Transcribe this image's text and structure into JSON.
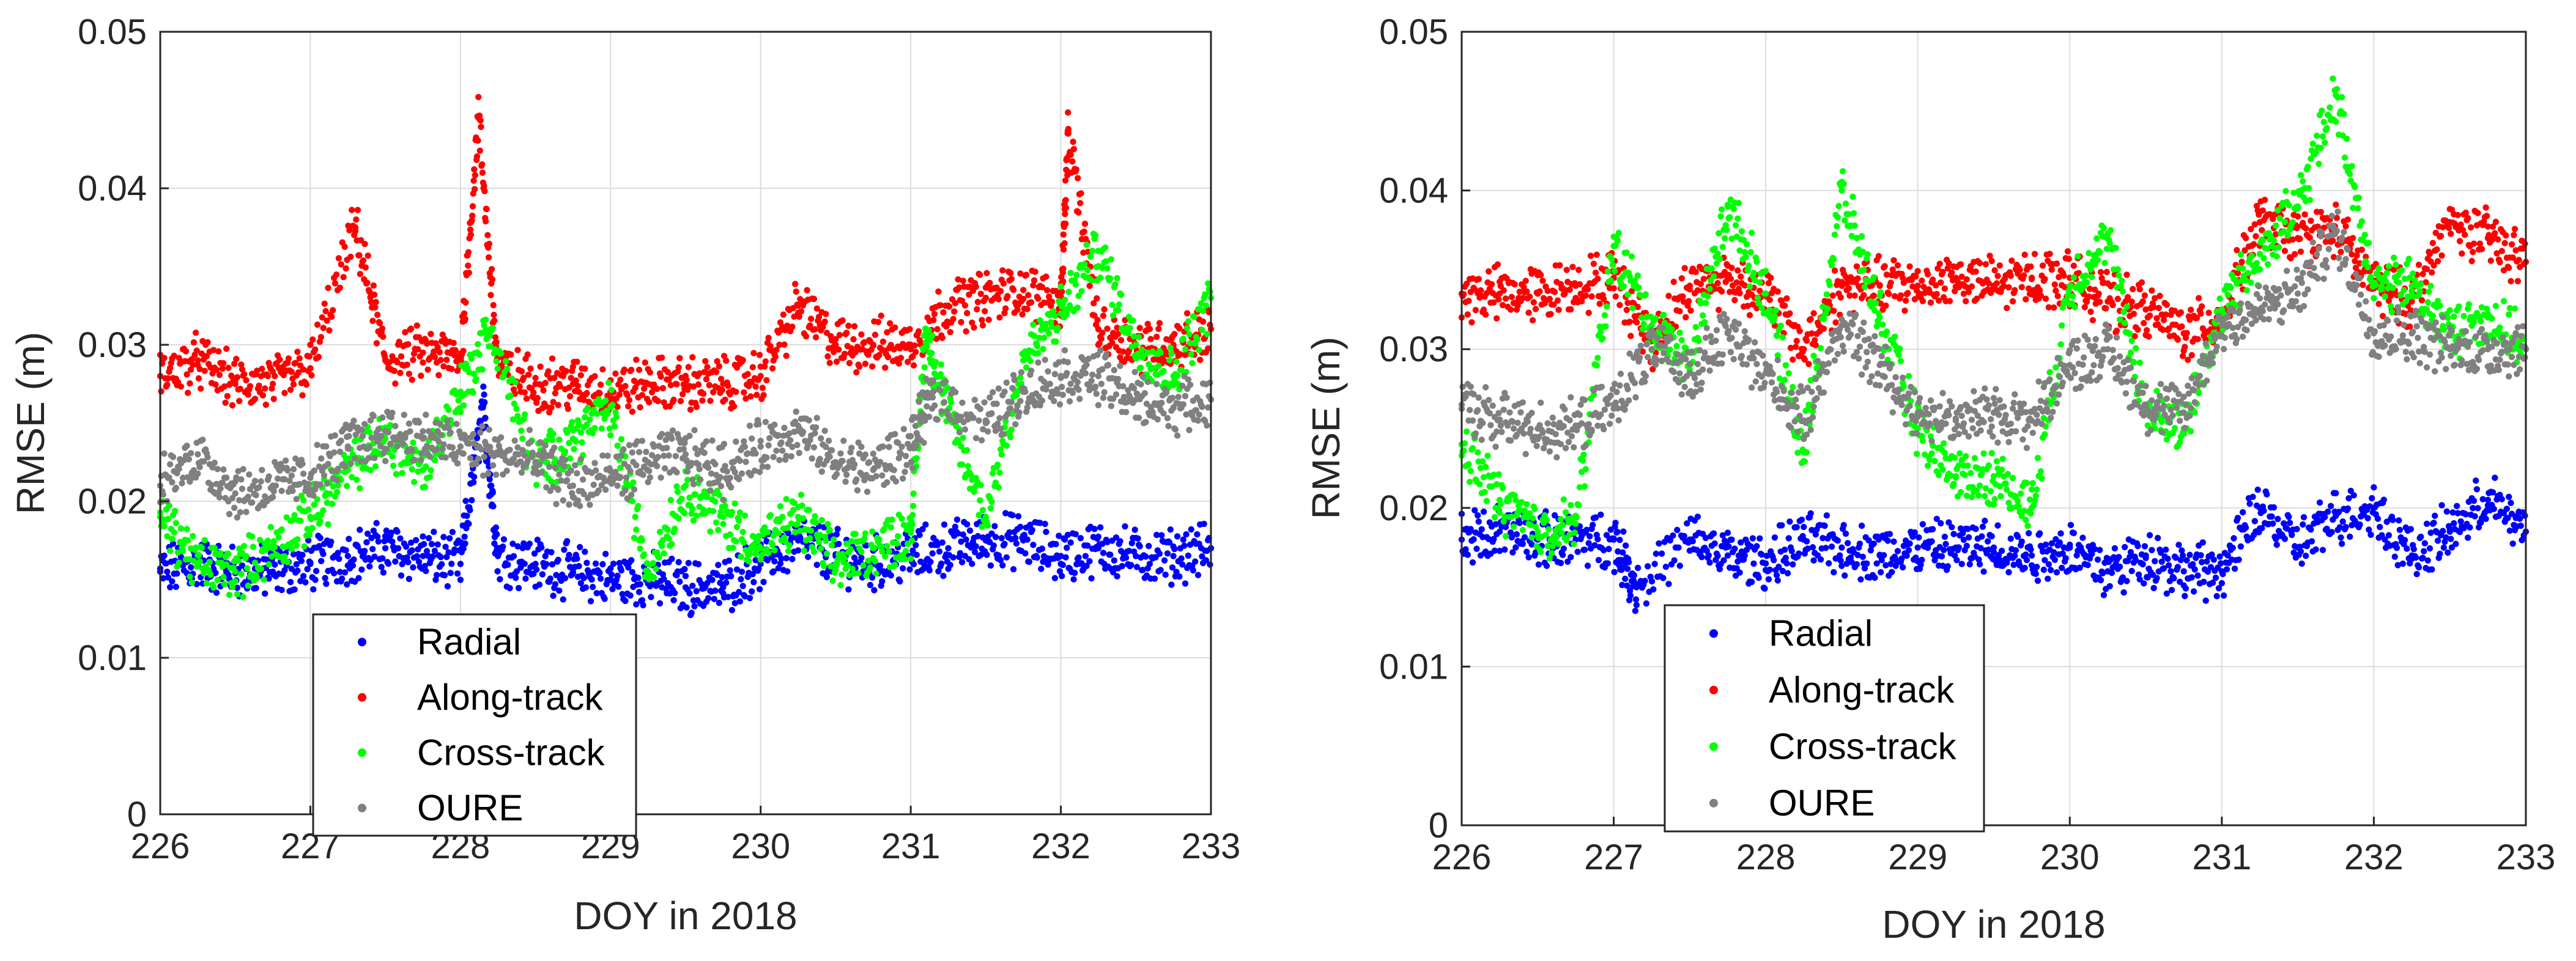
{
  "chart_data": [
    {
      "type": "scatter",
      "title": "",
      "xlabel": "DOY in 2018",
      "ylabel": "RMSE (m)",
      "xlim": [
        226,
        233
      ],
      "ylim": [
        0,
        0.05
      ],
      "xticks": [
        "226",
        "227",
        "228",
        "229",
        "230",
        "231",
        "232",
        "233"
      ],
      "yticks": [
        "0",
        "0.01",
        "0.02",
        "0.03",
        "0.04",
        "0.05"
      ],
      "grid": true,
      "legend_position": "lower-left",
      "series": [
        {
          "name": "Radial",
          "color": "#0000ff",
          "values": [
            [
              226.0,
              0.0155
            ],
            [
              226.25,
              0.016
            ],
            [
              226.5,
              0.0155
            ],
            [
              226.75,
              0.0155
            ],
            [
              227.0,
              0.016
            ],
            [
              227.25,
              0.0165
            ],
            [
              227.5,
              0.017
            ],
            [
              227.75,
              0.0165
            ],
            [
              228.0,
              0.016
            ],
            [
              228.15,
              0.026
            ],
            [
              228.25,
              0.0165
            ],
            [
              228.5,
              0.016
            ],
            [
              228.75,
              0.0155
            ],
            [
              229.0,
              0.015
            ],
            [
              229.25,
              0.015
            ],
            [
              229.5,
              0.0145
            ],
            [
              229.75,
              0.0145
            ],
            [
              230.0,
              0.016
            ],
            [
              230.25,
              0.0175
            ],
            [
              230.5,
              0.0165
            ],
            [
              230.75,
              0.016
            ],
            [
              231.0,
              0.0165
            ],
            [
              231.25,
              0.017
            ],
            [
              231.5,
              0.0175
            ],
            [
              231.75,
              0.0175
            ],
            [
              232.0,
              0.0165
            ],
            [
              232.25,
              0.017
            ],
            [
              232.5,
              0.0165
            ],
            [
              232.75,
              0.0165
            ],
            [
              233.0,
              0.017
            ]
          ]
        },
        {
          "name": "Along-track",
          "color": "#ff0000",
          "values": [
            [
              226.0,
              0.028
            ],
            [
              226.25,
              0.029
            ],
            [
              226.5,
              0.0275
            ],
            [
              226.75,
              0.0275
            ],
            [
              227.0,
              0.0285
            ],
            [
              227.3,
              0.0375
            ],
            [
              227.5,
              0.029
            ],
            [
              227.75,
              0.0295
            ],
            [
              228.0,
              0.029
            ],
            [
              228.12,
              0.0445
            ],
            [
              228.25,
              0.0285
            ],
            [
              228.5,
              0.0275
            ],
            [
              228.75,
              0.0275
            ],
            [
              229.0,
              0.027
            ],
            [
              229.25,
              0.0275
            ],
            [
              229.5,
              0.0275
            ],
            [
              229.75,
              0.0275
            ],
            [
              230.0,
              0.028
            ],
            [
              230.25,
              0.0325
            ],
            [
              230.5,
              0.03
            ],
            [
              230.75,
              0.03
            ],
            [
              231.0,
              0.03
            ],
            [
              231.25,
              0.0325
            ],
            [
              231.5,
              0.033
            ],
            [
              231.75,
              0.0335
            ],
            [
              232.0,
              0.0325
            ],
            [
              232.05,
              0.0435
            ],
            [
              232.25,
              0.031
            ],
            [
              232.5,
              0.03
            ],
            [
              232.75,
              0.03
            ],
            [
              233.0,
              0.031
            ]
          ]
        },
        {
          "name": "Cross-track",
          "color": "#00ff00",
          "values": [
            [
              226.0,
              0.019
            ],
            [
              226.25,
              0.016
            ],
            [
              226.5,
              0.0155
            ],
            [
              226.75,
              0.017
            ],
            [
              227.0,
              0.019
            ],
            [
              227.25,
              0.022
            ],
            [
              227.5,
              0.024
            ],
            [
              227.75,
              0.022
            ],
            [
              228.0,
              0.027
            ],
            [
              228.2,
              0.031
            ],
            [
              228.5,
              0.022
            ],
            [
              228.75,
              0.024
            ],
            [
              229.0,
              0.026
            ],
            [
              229.25,
              0.0155
            ],
            [
              229.5,
              0.021
            ],
            [
              229.75,
              0.019
            ],
            [
              230.0,
              0.017
            ],
            [
              230.25,
              0.019
            ],
            [
              230.5,
              0.016
            ],
            [
              230.75,
              0.017
            ],
            [
              231.0,
              0.018
            ],
            [
              231.1,
              0.031
            ],
            [
              231.25,
              0.0255
            ],
            [
              231.5,
              0.019
            ],
            [
              231.75,
              0.029
            ],
            [
              232.0,
              0.032
            ],
            [
              232.25,
              0.036
            ],
            [
              232.5,
              0.03
            ],
            [
              232.75,
              0.028
            ],
            [
              233.0,
              0.033
            ]
          ]
        },
        {
          "name": "OURE",
          "color": "#808080",
          "values": [
            [
              226.0,
              0.021
            ],
            [
              226.25,
              0.023
            ],
            [
              226.5,
              0.0205
            ],
            [
              226.75,
              0.021
            ],
            [
              227.0,
              0.0215
            ],
            [
              227.25,
              0.0235
            ],
            [
              227.5,
              0.0245
            ],
            [
              227.75,
              0.024
            ],
            [
              228.0,
              0.0235
            ],
            [
              228.25,
              0.023
            ],
            [
              228.5,
              0.0225
            ],
            [
              228.75,
              0.021
            ],
            [
              229.0,
              0.0215
            ],
            [
              229.25,
              0.0225
            ],
            [
              229.5,
              0.023
            ],
            [
              229.75,
              0.022
            ],
            [
              230.0,
              0.0235
            ],
            [
              230.25,
              0.0245
            ],
            [
              230.5,
              0.0225
            ],
            [
              230.75,
              0.022
            ],
            [
              231.0,
              0.0235
            ],
            [
              231.15,
              0.027
            ],
            [
              231.5,
              0.025
            ],
            [
              231.75,
              0.027
            ],
            [
              232.0,
              0.028
            ],
            [
              232.25,
              0.028
            ],
            [
              232.5,
              0.0265
            ],
            [
              232.75,
              0.026
            ],
            [
              233.0,
              0.0265
            ]
          ]
        }
      ]
    },
    {
      "type": "scatter",
      "title": "",
      "xlabel": "DOY in 2018",
      "ylabel": "RMSE (m)",
      "xlim": [
        226,
        233
      ],
      "ylim": [
        0,
        0.05
      ],
      "xticks": [
        "226",
        "227",
        "228",
        "229",
        "230",
        "231",
        "232",
        "233"
      ],
      "yticks": [
        "0",
        "0.01",
        "0.02",
        "0.03",
        "0.04",
        "0.05"
      ],
      "grid": true,
      "legend_position": "lower-left",
      "series": [
        {
          "name": "Radial",
          "color": "#0000ff",
          "values": [
            [
              226.0,
              0.018
            ],
            [
              226.25,
              0.0185
            ],
            [
              226.5,
              0.018
            ],
            [
              226.75,
              0.018
            ],
            [
              227.0,
              0.018
            ],
            [
              227.15,
              0.015
            ],
            [
              227.5,
              0.018
            ],
            [
              227.75,
              0.017
            ],
            [
              228.0,
              0.0165
            ],
            [
              228.25,
              0.018
            ],
            [
              228.5,
              0.0175
            ],
            [
              228.75,
              0.017
            ],
            [
              229.0,
              0.0175
            ],
            [
              229.25,
              0.0175
            ],
            [
              229.5,
              0.0175
            ],
            [
              229.75,
              0.017
            ],
            [
              230.0,
              0.0175
            ],
            [
              230.25,
              0.016
            ],
            [
              230.5,
              0.017
            ],
            [
              230.75,
              0.016
            ],
            [
              231.0,
              0.016
            ],
            [
              231.25,
              0.02
            ],
            [
              231.5,
              0.0175
            ],
            [
              231.75,
              0.0195
            ],
            [
              232.0,
              0.02
            ],
            [
              232.25,
              0.017
            ],
            [
              232.5,
              0.0185
            ],
            [
              232.75,
              0.0205
            ],
            [
              233.0,
              0.0185
            ]
          ]
        },
        {
          "name": "Along-track",
          "color": "#ff0000",
          "values": [
            [
              226.0,
              0.0335
            ],
            [
              226.25,
              0.0335
            ],
            [
              226.5,
              0.0335
            ],
            [
              226.75,
              0.034
            ],
            [
              227.0,
              0.0345
            ],
            [
              227.25,
              0.0305
            ],
            [
              227.5,
              0.034
            ],
            [
              227.75,
              0.0345
            ],
            [
              228.0,
              0.0335
            ],
            [
              228.25,
              0.03
            ],
            [
              228.5,
              0.034
            ],
            [
              228.75,
              0.034
            ],
            [
              229.0,
              0.034
            ],
            [
              229.25,
              0.0345
            ],
            [
              229.5,
              0.034
            ],
            [
              229.75,
              0.0345
            ],
            [
              230.0,
              0.0345
            ],
            [
              230.25,
              0.033
            ],
            [
              230.5,
              0.0325
            ],
            [
              230.75,
              0.031
            ],
            [
              231.0,
              0.032
            ],
            [
              231.25,
              0.038
            ],
            [
              231.5,
              0.037
            ],
            [
              231.75,
              0.0375
            ],
            [
              232.0,
              0.034
            ],
            [
              232.25,
              0.033
            ],
            [
              232.5,
              0.038
            ],
            [
              232.75,
              0.037
            ],
            [
              233.0,
              0.0355
            ]
          ]
        },
        {
          "name": "Cross-track",
          "color": "#00ff00",
          "values": [
            [
              226.0,
              0.024
            ],
            [
              226.25,
              0.0205
            ],
            [
              226.5,
              0.0185
            ],
            [
              226.75,
              0.019
            ],
            [
              227.0,
              0.0365
            ],
            [
              227.25,
              0.0315
            ],
            [
              227.5,
              0.029
            ],
            [
              227.75,
              0.039
            ],
            [
              228.0,
              0.0335
            ],
            [
              228.25,
              0.0235
            ],
            [
              228.5,
              0.04
            ],
            [
              228.75,
              0.032
            ],
            [
              229.0,
              0.025
            ],
            [
              229.25,
              0.022
            ],
            [
              229.5,
              0.022
            ],
            [
              229.75,
              0.02
            ],
            [
              230.0,
              0.034
            ],
            [
              230.25,
              0.037
            ],
            [
              230.5,
              0.026
            ],
            [
              230.75,
              0.025
            ],
            [
              231.0,
              0.0325
            ],
            [
              231.25,
              0.036
            ],
            [
              231.5,
              0.039
            ],
            [
              231.75,
              0.046
            ],
            [
              232.0,
              0.034
            ],
            [
              232.25,
              0.034
            ],
            [
              232.5,
              0.031
            ],
            [
              232.75,
              0.032
            ],
            [
              233.0,
              0.03
            ]
          ]
        },
        {
          "name": "OURE",
          "color": "#808080",
          "values": [
            [
              226.0,
              0.0265
            ],
            [
              226.25,
              0.0255
            ],
            [
              226.5,
              0.025
            ],
            [
              226.75,
              0.025
            ],
            [
              227.0,
              0.0265
            ],
            [
              227.25,
              0.03
            ],
            [
              227.5,
              0.0285
            ],
            [
              227.75,
              0.031
            ],
            [
              228.0,
              0.0285
            ],
            [
              228.25,
              0.0255
            ],
            [
              228.5,
              0.0315
            ],
            [
              228.75,
              0.029
            ],
            [
              229.0,
              0.026
            ],
            [
              229.25,
              0.0255
            ],
            [
              229.5,
              0.026
            ],
            [
              229.75,
              0.0255
            ],
            [
              230.0,
              0.029
            ],
            [
              230.25,
              0.03
            ],
            [
              230.5,
              0.0265
            ],
            [
              230.75,
              0.026
            ],
            [
              231.0,
              0.0315
            ],
            [
              231.25,
              0.0325
            ],
            [
              231.5,
              0.0335
            ],
            [
              231.75,
              0.0375
            ],
            [
              232.0,
              0.031
            ],
            [
              232.25,
              0.031
            ],
            [
              232.5,
              0.03
            ],
            [
              232.75,
              0.03
            ],
            [
              233.0,
              0.03
            ]
          ]
        }
      ]
    }
  ]
}
